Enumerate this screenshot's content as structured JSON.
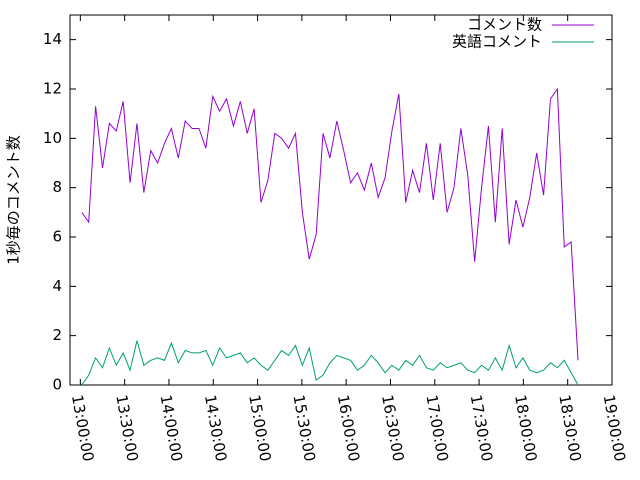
{
  "chart_data": {
    "type": "line",
    "ylabel": "1秒毎のコメント数",
    "x": [
      "13:01:00",
      "13:05:40",
      "13:10:20",
      "13:15:00",
      "13:19:40",
      "13:24:20",
      "13:29:00",
      "13:33:40",
      "13:38:20",
      "13:43:00",
      "13:47:40",
      "13:52:20",
      "13:57:00",
      "14:01:40",
      "14:06:20",
      "14:11:00",
      "14:15:40",
      "14:20:20",
      "14:25:00",
      "14:29:40",
      "14:34:20",
      "14:39:00",
      "14:43:40",
      "14:48:20",
      "14:53:00",
      "14:57:40",
      "15:02:20",
      "15:07:00",
      "15:11:40",
      "15:16:20",
      "15:21:00",
      "15:25:40",
      "15:30:20",
      "15:35:00",
      "15:39:40",
      "15:44:20",
      "15:49:00",
      "15:53:40",
      "15:58:20",
      "16:03:00",
      "16:07:40",
      "16:12:20",
      "16:17:00",
      "16:21:40",
      "16:26:20",
      "16:31:00",
      "16:35:40",
      "16:40:20",
      "16:45:00",
      "16:49:40",
      "16:54:20",
      "16:59:00",
      "17:03:40",
      "17:08:20",
      "17:13:00",
      "17:17:40",
      "17:22:20",
      "17:27:00",
      "17:31:40",
      "17:36:20",
      "17:41:00",
      "17:45:40",
      "17:50:20",
      "17:55:00",
      "17:59:40",
      "18:04:20",
      "18:09:00",
      "18:13:40",
      "18:18:20",
      "18:23:00",
      "18:27:40",
      "18:32:20",
      "18:37:00"
    ],
    "series": [
      {
        "name": "コメント数",
        "color": "#9400d3",
        "values": [
          7.0,
          6.6,
          11.3,
          8.8,
          10.6,
          10.3,
          11.5,
          8.2,
          10.6,
          7.8,
          9.5,
          9.0,
          9.8,
          10.4,
          9.2,
          10.7,
          10.4,
          10.4,
          9.6,
          11.7,
          11.1,
          11.6,
          10.5,
          11.5,
          10.2,
          11.2,
          7.4,
          8.3,
          10.2,
          10.0,
          9.6,
          10.2,
          7.0,
          5.1,
          6.1,
          10.2,
          9.2,
          10.7,
          9.5,
          8.2,
          8.6,
          7.9,
          9.0,
          7.6,
          8.4,
          10.3,
          11.8,
          7.4,
          8.7,
          7.8,
          9.8,
          7.5,
          9.8,
          7.0,
          8.0,
          10.4,
          8.5,
          5.0,
          8.0,
          10.5,
          6.6,
          10.4,
          5.7,
          7.5,
          6.4,
          7.6,
          9.4,
          7.7,
          11.6,
          12.0,
          5.6,
          5.8,
          1.0
        ]
      },
      {
        "name": "英語コメント",
        "color": "#009e73",
        "values": [
          0.0,
          0.4,
          1.1,
          0.7,
          1.5,
          0.8,
          1.3,
          0.6,
          1.8,
          0.8,
          1.0,
          1.1,
          1.0,
          1.7,
          0.9,
          1.4,
          1.3,
          1.3,
          1.4,
          0.8,
          1.5,
          1.1,
          1.2,
          1.3,
          0.9,
          1.1,
          0.8,
          0.6,
          1.0,
          1.4,
          1.2,
          1.6,
          0.8,
          1.5,
          0.2,
          0.4,
          0.9,
          1.2,
          1.1,
          1.0,
          0.6,
          0.8,
          1.2,
          0.9,
          0.5,
          0.8,
          0.6,
          1.0,
          0.8,
          1.2,
          0.7,
          0.6,
          0.9,
          0.7,
          0.8,
          0.9,
          0.6,
          0.5,
          0.8,
          0.6,
          1.1,
          0.6,
          1.6,
          0.7,
          1.1,
          0.6,
          0.5,
          0.6,
          0.9,
          0.7,
          1.0,
          0.5,
          0.0
        ]
      }
    ],
    "xlim": [
      "12:53:00",
      "19:00:00"
    ],
    "xticks": [
      "13:00:00",
      "13:30:00",
      "14:00:00",
      "14:30:00",
      "15:00:00",
      "15:30:00",
      "16:00:00",
      "16:30:00",
      "17:00:00",
      "17:30:00",
      "18:00:00",
      "18:30:00",
      "19:00:00"
    ],
    "ylim": [
      0,
      15
    ],
    "yticks": [
      0,
      2,
      4,
      6,
      8,
      10,
      12,
      14
    ],
    "legend": "top-right"
  }
}
